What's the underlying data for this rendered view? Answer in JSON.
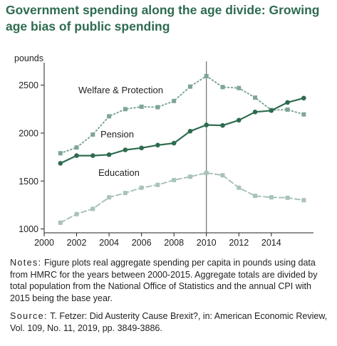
{
  "title": "Government spending along the age divide: Growing age bias of public spending",
  "notes": {
    "label": "Notes:",
    "text": " Figure plots real aggregate spending per capita in pounds using data from HMRC for the years between 2000-2015. Aggregate totals are divided by total population from the National Office of Statistics and the annual CPI with 2015 being the base year."
  },
  "source": {
    "label": "Source:",
    "text": " T. Fetzer: Did Austerity Cause Brexit?, in: American Economic Review, Vol. 109, No. 11, 2019, pp. 3849-3886."
  },
  "colors": {
    "title": "#2e6b4f",
    "pension": "#2e6b4f",
    "welfare": "#7fa595",
    "education": "#a9c3b7",
    "axis": "#222222"
  },
  "chart_data": {
    "type": "line",
    "ylabel": "pounds",
    "xlim": [
      2000,
      2016.6
    ],
    "ylim": [
      960,
      2720
    ],
    "x_ticks": [
      2000,
      2002,
      2004,
      2006,
      2008,
      2010,
      2012,
      2014
    ],
    "y_ticks": [
      1000,
      1500,
      2000,
      2500
    ],
    "vline_x": 2010,
    "x": [
      2001,
      2002,
      2003,
      2004,
      2005,
      2006,
      2007,
      2008,
      2009,
      2010,
      2011,
      2012,
      2013,
      2014,
      2015,
      2016
    ],
    "series": [
      {
        "name": "Welfare & Protection",
        "style": "dotted",
        "color": "#7fa595",
        "values": [
          1790,
          1850,
          1985,
          2175,
          2250,
          2275,
          2270,
          2335,
          2485,
          2595,
          2480,
          2470,
          2370,
          2240,
          2245,
          2195
        ]
      },
      {
        "name": "Pension",
        "style": "solid",
        "color": "#2e6b4f",
        "values": [
          1685,
          1765,
          1765,
          1775,
          1825,
          1845,
          1875,
          1895,
          2020,
          2085,
          2080,
          2135,
          2220,
          2235,
          2320,
          2365
        ]
      },
      {
        "name": "Education",
        "style": "dashed",
        "color": "#a9c3b7",
        "values": [
          1065,
          1155,
          1210,
          1330,
          1375,
          1430,
          1460,
          1510,
          1545,
          1585,
          1560,
          1430,
          1345,
          1330,
          1325,
          1300
        ]
      }
    ]
  }
}
